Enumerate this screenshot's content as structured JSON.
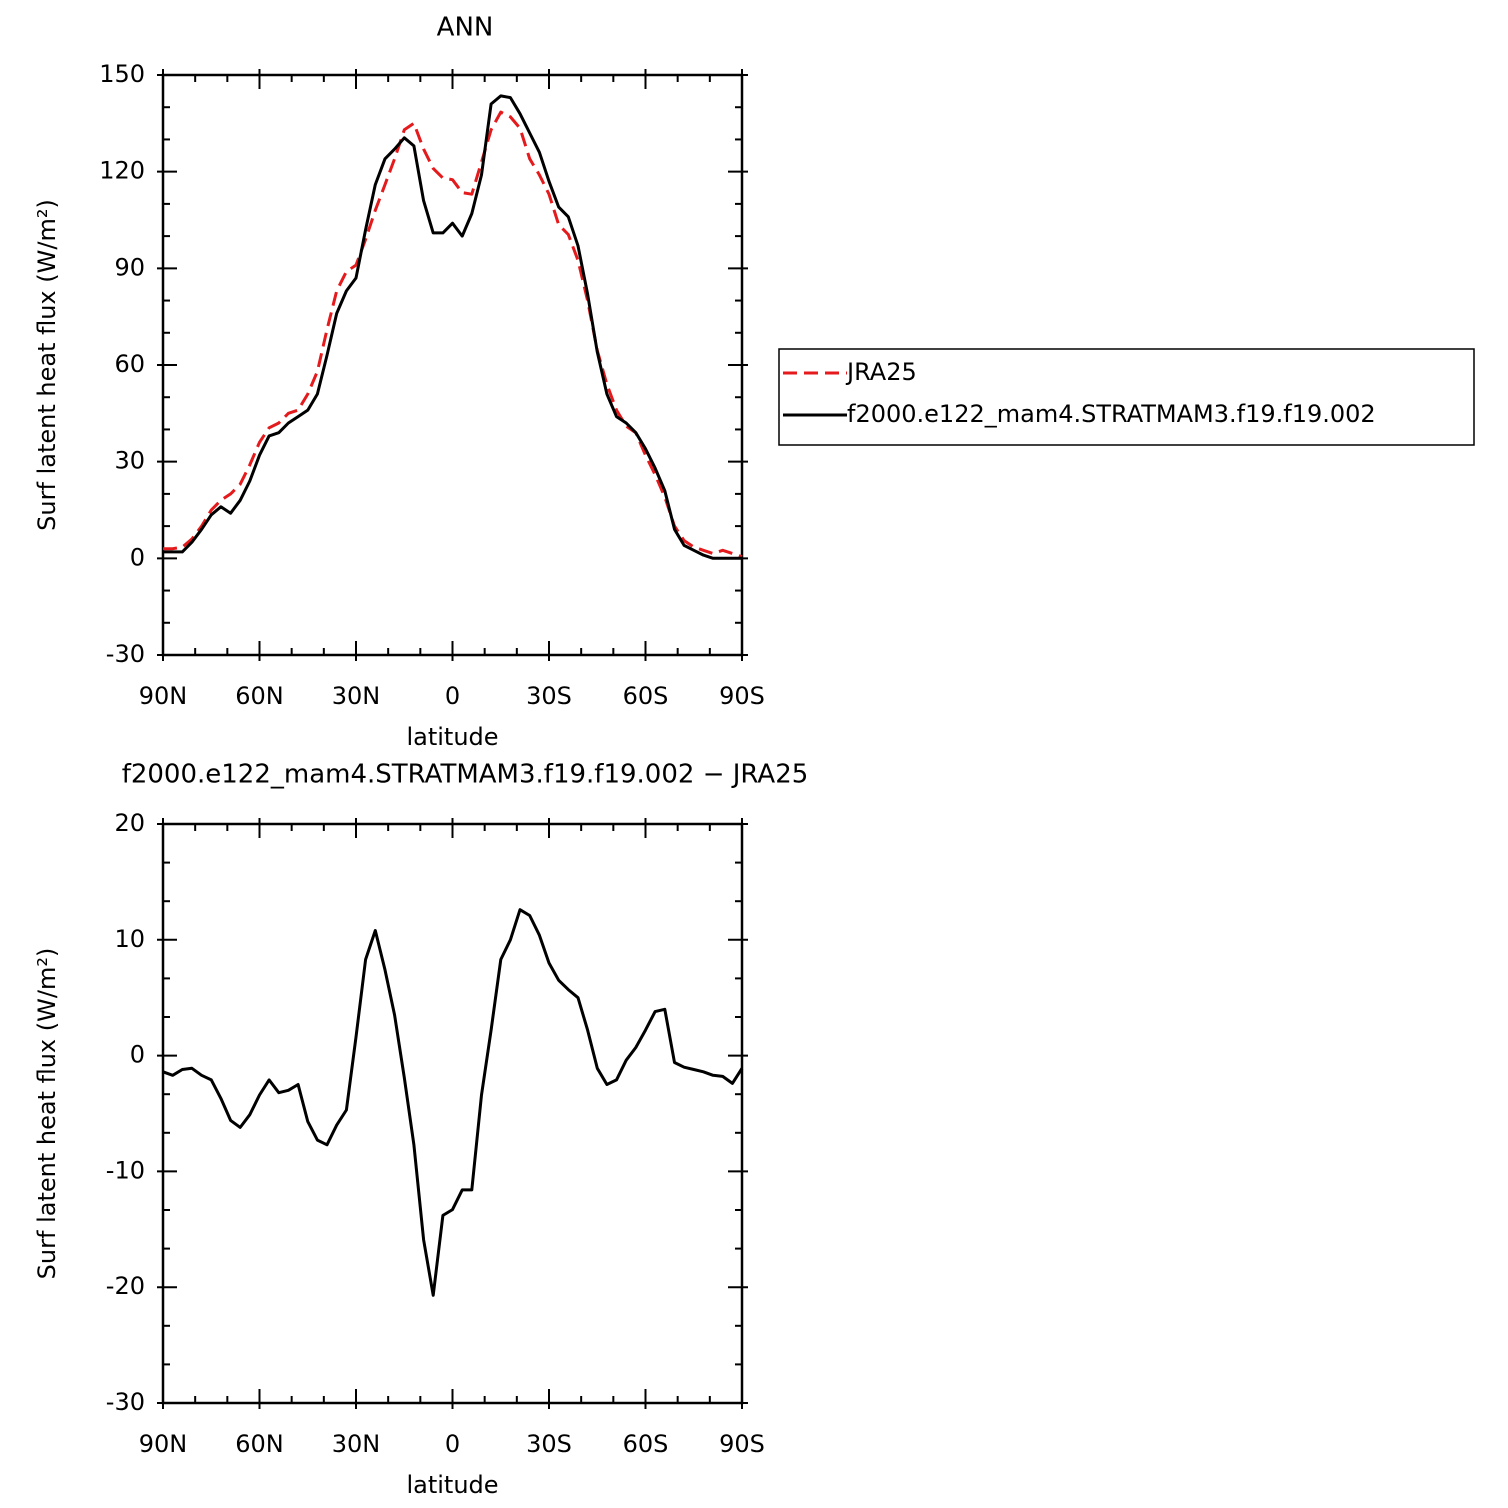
{
  "chart_data": [
    {
      "type": "line",
      "title": "ANN",
      "xlabel": "latitude",
      "ylabel": "Surf latent heat flux (W/m²)",
      "x": [
        90,
        87,
        84,
        81,
        78,
        75,
        72,
        69,
        66,
        63,
        60,
        57,
        54,
        51,
        48,
        45,
        42,
        39,
        36,
        33,
        30,
        27,
        24,
        21,
        18,
        15,
        12,
        9,
        6,
        3,
        0,
        -3,
        -6,
        -9,
        -12,
        -15,
        -18,
        -21,
        -24,
        -27,
        -30,
        -33,
        -36,
        -39,
        -42,
        -45,
        -48,
        -51,
        -54,
        -57,
        -60,
        -63,
        -66,
        -69,
        -72,
        -75,
        -78,
        -81,
        -84,
        -87,
        -90
      ],
      "series": [
        {
          "name": "JRA25",
          "color": "#e41a1c",
          "dashed": true,
          "values": [
            3,
            3,
            3.5,
            6,
            10,
            15,
            18,
            20,
            23,
            29,
            36,
            40.5,
            42,
            45,
            46,
            51,
            58,
            71,
            83,
            89,
            91,
            99,
            108,
            116,
            124,
            133,
            135,
            127,
            121,
            118,
            117.5,
            113.5,
            113,
            123,
            133,
            138.5,
            137,
            133.5,
            124,
            119,
            113,
            103.5,
            100.5,
            92.5,
            80,
            64.5,
            54,
            46,
            41,
            39,
            32,
            26,
            19,
            10,
            5.5,
            3.5,
            2.5,
            1.5,
            2.5,
            1.5,
            0.5
          ]
        },
        {
          "name": "f2000.e122_mam4.STRATMAM3.f19.f19.002",
          "color": "#000000",
          "dashed": false,
          "values": [
            2,
            2,
            2,
            5,
            9,
            13.5,
            16,
            14,
            18,
            24,
            32,
            38,
            39,
            42,
            44,
            46,
            51,
            63,
            76,
            83,
            87,
            102,
            116,
            124,
            127,
            130.5,
            128,
            111,
            101,
            101,
            104,
            100,
            107,
            119,
            141,
            143.5,
            143,
            138,
            132,
            126,
            117,
            109,
            106,
            97,
            82,
            64,
            51,
            44,
            42,
            39,
            34,
            28,
            21,
            9,
            4,
            2.5,
            1,
            0,
            0,
            0,
            0
          ]
        }
      ],
      "xlim": [
        90,
        -90
      ],
      "xticks": [
        {
          "value": 90,
          "label": "90N"
        },
        {
          "value": 60,
          "label": "60N"
        },
        {
          "value": 30,
          "label": "30N"
        },
        0,
        {
          "value": -30,
          "label": "30S"
        },
        {
          "value": -60,
          "label": "60S"
        },
        {
          "value": -90,
          "label": "90S"
        }
      ],
      "ylim": [
        -30,
        150
      ],
      "yticks": [
        -30,
        0,
        30,
        60,
        90,
        120,
        150
      ],
      "legend": "right"
    },
    {
      "type": "line",
      "title": "f2000.e122_mam4.STRATMAM3.f19.f19.002 − JRA25",
      "xlabel": "latitude",
      "ylabel": "Surf latent heat flux (W/m²)",
      "x": [
        90,
        87,
        84,
        81,
        78,
        75,
        72,
        69,
        66,
        63,
        60,
        57,
        54,
        51,
        48,
        45,
        42,
        39,
        36,
        33,
        30,
        27,
        24,
        21,
        18,
        15,
        12,
        9,
        6,
        3,
        0,
        -3,
        -6,
        -9,
        -12,
        -15,
        -18,
        -21,
        -24,
        -27,
        -30,
        -33,
        -36,
        -39,
        -42,
        -45,
        -48,
        -51,
        -54,
        -57,
        -60,
        -63,
        -66,
        -69,
        -72,
        -75,
        -78,
        -81,
        -84,
        -87,
        -90
      ],
      "color": "#000000",
      "values": [
        -1.4,
        -1.7,
        -1.2,
        -1.1,
        -1.7,
        -2.1,
        -3.7,
        -5.6,
        -6.2,
        -5.1,
        -3.4,
        -2.1,
        -3.2,
        -3,
        -2.5,
        -5.7,
        -7.3,
        -7.7,
        -6,
        -4.7,
        1.6,
        8.3,
        10.8,
        7.4,
        3.5,
        -1.9,
        -7.7,
        -15.9,
        -20.7,
        -13.8,
        -13.3,
        -11.6,
        -11.6,
        -3.4,
        2.2,
        8.3,
        10,
        12.6,
        12.1,
        10.4,
        8,
        6.5,
        5.7,
        5,
        2.2,
        -1.1,
        -2.5,
        -2.1,
        -0.4,
        0.7,
        2.2,
        3.8,
        4,
        -0.6,
        -1,
        -1.2,
        -1.4,
        -1.7,
        -1.8,
        -2.4,
        -1.1
      ],
      "xlim": [
        90,
        -90
      ],
      "xticks": [
        {
          "value": 90,
          "label": "90N"
        },
        {
          "value": 60,
          "label": "60N"
        },
        {
          "value": 30,
          "label": "30N"
        },
        0,
        {
          "value": -30,
          "label": "30S"
        },
        {
          "value": -60,
          "label": "60S"
        },
        {
          "value": -90,
          "label": "90S"
        }
      ],
      "ylim": [
        -30,
        20
      ],
      "yticks": [
        -30,
        -20,
        -10,
        0,
        10,
        20
      ]
    }
  ]
}
